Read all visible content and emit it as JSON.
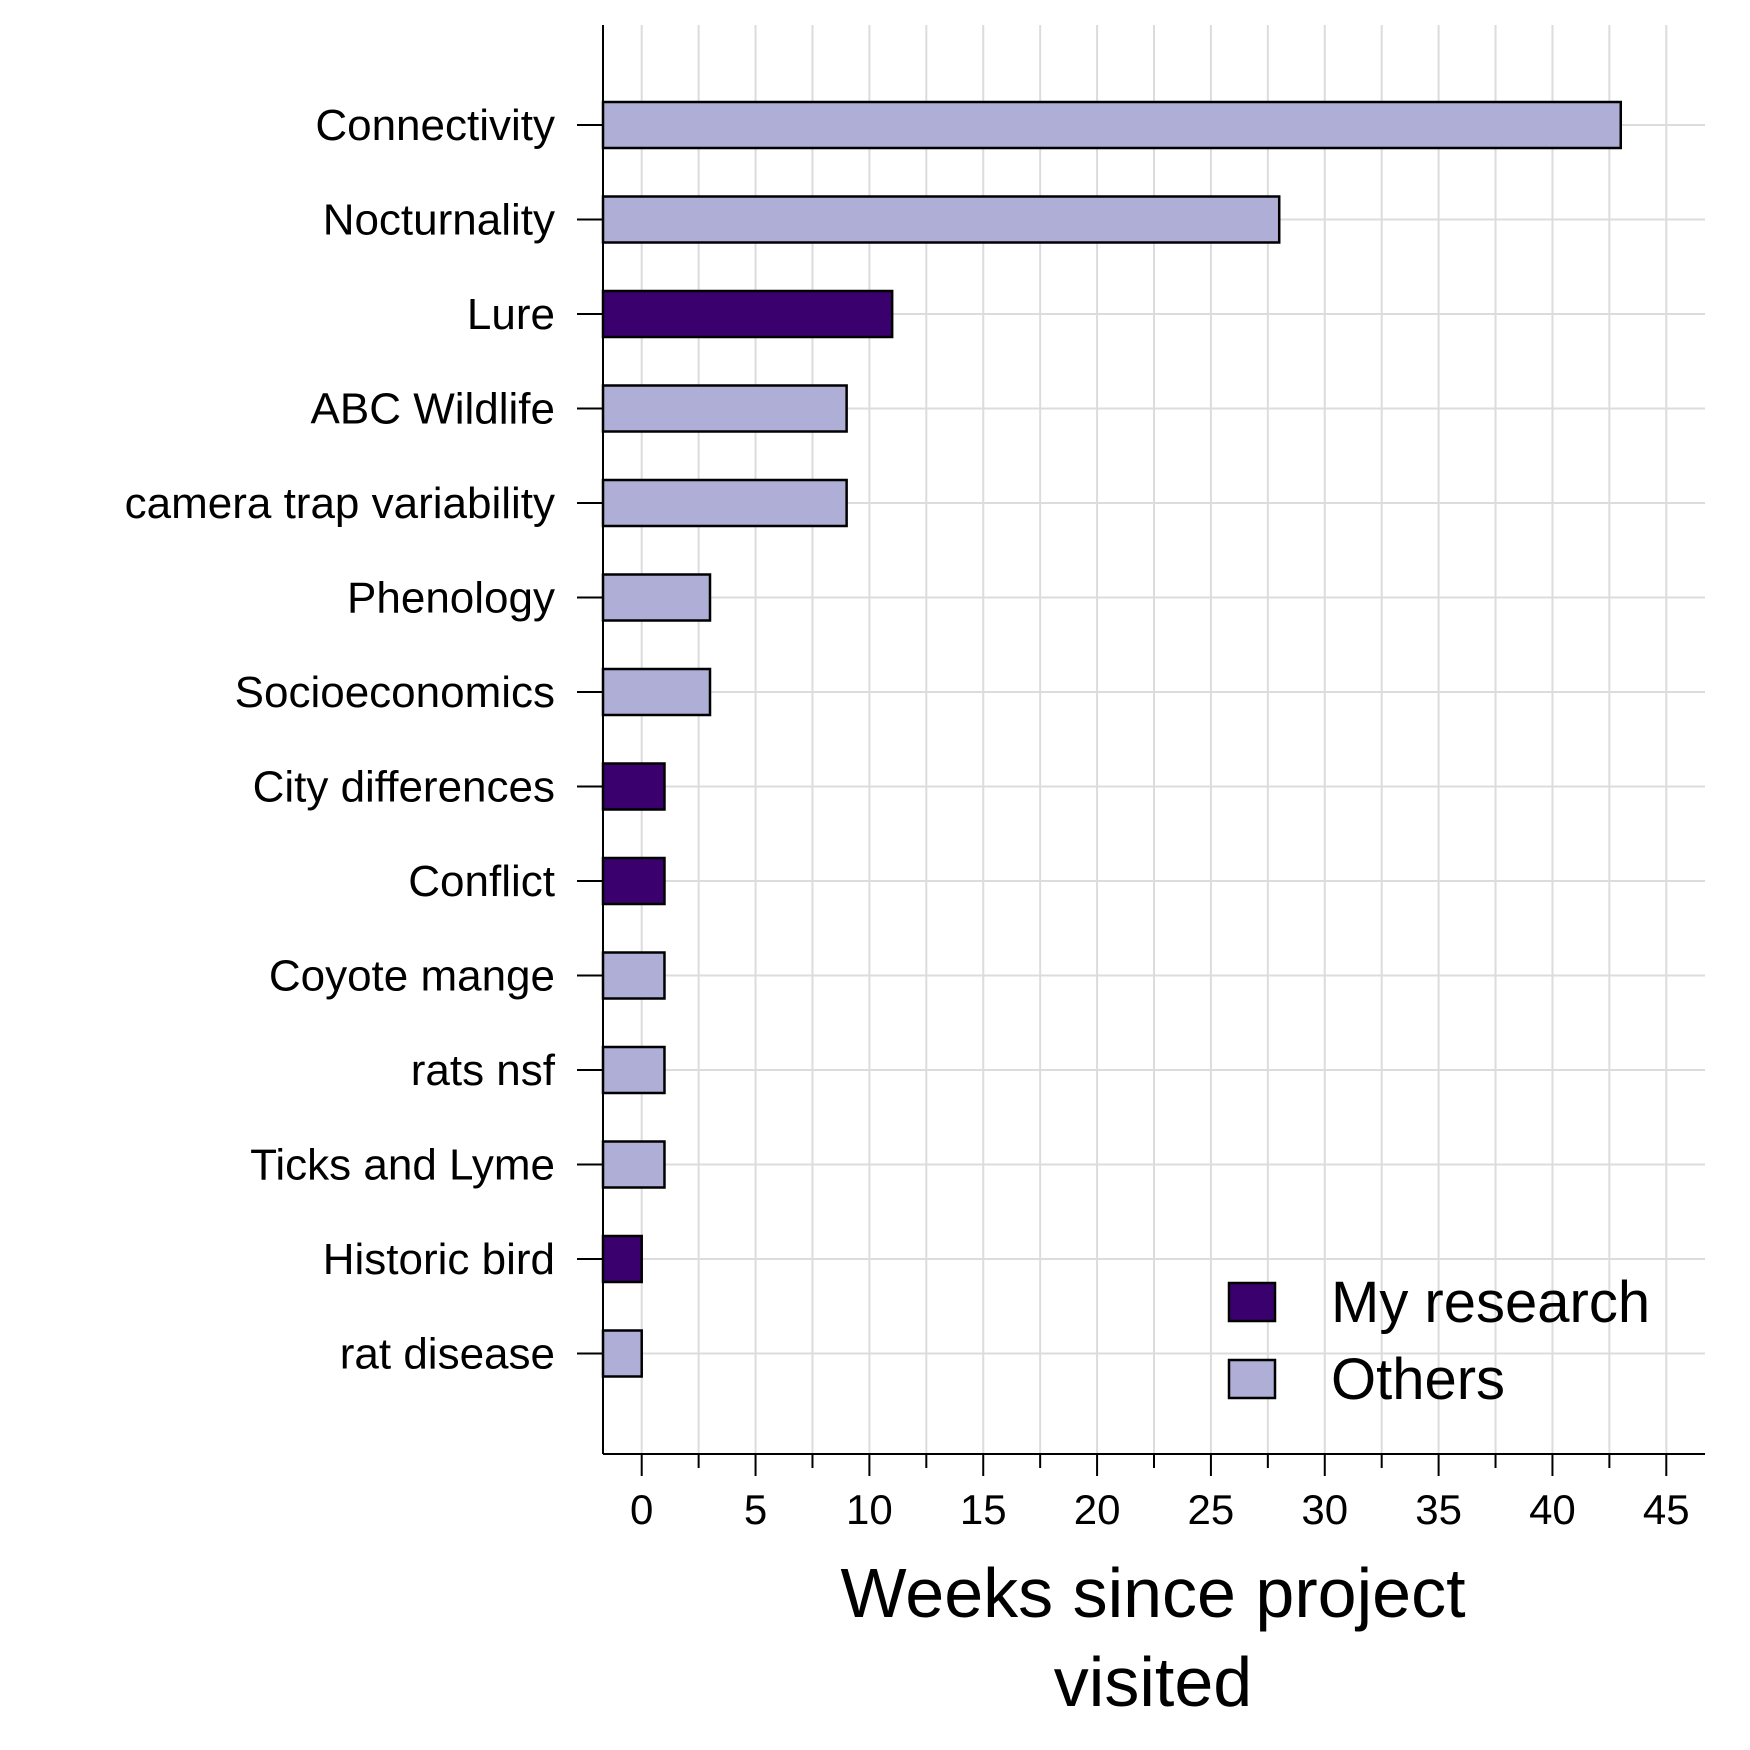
{
  "chart_data": {
    "type": "bar",
    "orientation": "horizontal",
    "categories": [
      "Connectivity",
      "Nocturnality",
      "Lure",
      "ABC Wildlife",
      "camera trap variability",
      "Phenology",
      "Socioeconomics",
      "City differences",
      "Conflict",
      "Coyote mange",
      "rats nsf",
      "Ticks and Lyme",
      "Historic bird",
      "rat disease"
    ],
    "values": [
      43,
      28,
      11,
      9,
      9,
      3,
      3,
      1,
      1,
      1,
      1,
      1,
      0,
      0
    ],
    "groups": [
      "Others",
      "Others",
      "My research",
      "Others",
      "Others",
      "Others",
      "Others",
      "My research",
      "My research",
      "Others",
      "Others",
      "Others",
      "My research",
      "Others"
    ],
    "legend": [
      {
        "name": "My research",
        "color": "#3a006e"
      },
      {
        "name": "Others",
        "color": "#aeaed6"
      }
    ],
    "legend_position": "bottom-right",
    "xlabel_lines": [
      "Weeks since project",
      "visited"
    ],
    "xlim": [
      -1.7,
      46.7
    ],
    "xticks": [
      0,
      5,
      10,
      15,
      20,
      25,
      30,
      35,
      40,
      45
    ],
    "grid": true
  }
}
